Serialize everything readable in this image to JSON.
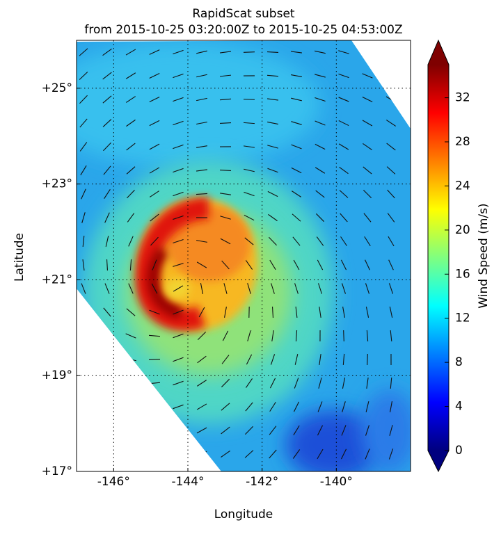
{
  "chart_data": {
    "type": "heatmap",
    "title": "RapidScat subset",
    "subtitle": "from 2015-10-25 03:20:00Z to 2015-10-25 04:53:00Z",
    "x_label": "Longitude",
    "y_label": "Latitude",
    "xlim": [
      -147,
      -138
    ],
    "ylim": [
      17,
      26
    ],
    "xticks": [
      {
        "value": -146,
        "label": "-146°"
      },
      {
        "value": -144,
        "label": "-144°"
      },
      {
        "value": -142,
        "label": "-142°"
      },
      {
        "value": -140,
        "label": "-140°"
      }
    ],
    "yticks": [
      {
        "value": 17,
        "label": "+17°"
      },
      {
        "value": 19,
        "label": "+19°"
      },
      {
        "value": 21,
        "label": "+21°"
      },
      {
        "value": 23,
        "label": "+23°"
      },
      {
        "value": 25,
        "label": "+25°"
      }
    ],
    "grid": true,
    "colorbar": {
      "label": "Wind Speed (m/s)",
      "lim": [
        0,
        35
      ],
      "ticks": [
        0,
        4,
        8,
        12,
        16,
        20,
        24,
        28,
        32
      ]
    }
  }
}
